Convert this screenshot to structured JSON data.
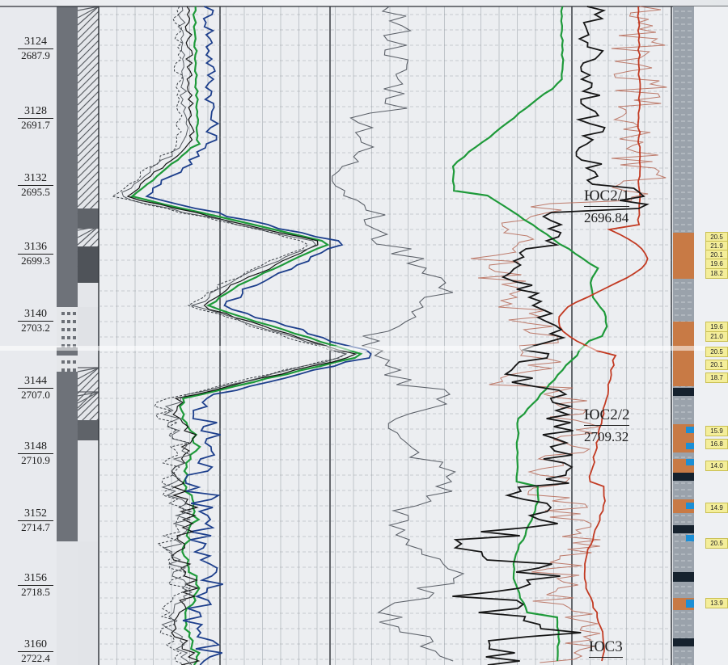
{
  "depth_marks": [
    {
      "md": "3124",
      "tvd": "2687.9"
    },
    {
      "md": "3128",
      "tvd": "2691.7"
    },
    {
      "md": "3132",
      "tvd": "2695.5"
    },
    {
      "md": "3136",
      "tvd": "2699.3"
    },
    {
      "md": "3140",
      "tvd": "2703.2"
    },
    {
      "md": "3144",
      "tvd": "2707.0"
    },
    {
      "md": "3148",
      "tvd": "2710.9"
    },
    {
      "md": "3152",
      "tvd": "2714.7"
    },
    {
      "md": "3156",
      "tvd": "2718.5"
    },
    {
      "md": "3160",
      "tvd": "2722.4"
    }
  ],
  "strat_tops": [
    {
      "name": "ЮС2/1",
      "depth": "2696.84"
    },
    {
      "name": "ЮС2/2",
      "depth": "2709.32"
    },
    {
      "name": "ЮС3",
      "depth": ""
    }
  ],
  "porosity_values": [
    "20.5",
    "21.9",
    "20.1",
    "19.6",
    "18.2",
    "19.6",
    "21.0",
    "20.5",
    "20.1",
    "18.7",
    "15.9",
    "16.8",
    "14.0",
    "14.9",
    "20.5",
    "13.9"
  ],
  "colors": {
    "paper": "#eceef1",
    "grid": "#8d939a",
    "curve_green": "#1e9a3a",
    "curve_blue": "#1d3f8c",
    "curve_black": "#151515",
    "curve_red": "#c23a22",
    "curve_salmon": "#b86e5c",
    "lith_sand": "#c87a45",
    "lith_shale": "#9aa2ab"
  }
}
